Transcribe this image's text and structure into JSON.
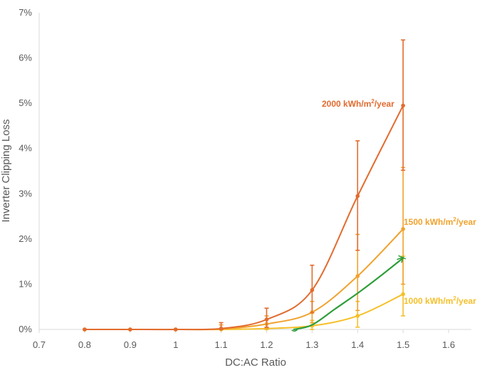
{
  "chart_data": {
    "type": "line",
    "title": "",
    "xlabel": "DC:AC Ratio",
    "ylabel": "Inverter Clipping Loss",
    "xlim": [
      0.7,
      1.65
    ],
    "ylim": [
      0,
      7
    ],
    "x_ticks": [
      "0.7",
      "0.8",
      "0.9",
      "1",
      "1.1",
      "1.2",
      "1.3",
      "1.4",
      "1.5",
      "1.6"
    ],
    "y_ticks": [
      "0%",
      "1%",
      "2%",
      "3%",
      "4%",
      "5%",
      "6%",
      "7%"
    ],
    "grid": false,
    "x": [
      0.8,
      0.9,
      1.0,
      1.1,
      1.2,
      1.3,
      1.4,
      1.5
    ],
    "series": [
      {
        "name": "2000 kWh/m²/year",
        "label_main": "2000 kWh/m",
        "label_sup": "2",
        "label_tail": "/year",
        "color": "#e26b2f",
        "values": [
          0,
          0,
          0,
          0.02,
          0.22,
          0.87,
          2.95,
          4.95
        ],
        "err_low": [
          0,
          0,
          0,
          0.0,
          0.05,
          0.37,
          1.75,
          3.52
        ],
        "err_high": [
          0,
          0,
          0,
          0.15,
          0.47,
          1.42,
          4.17,
          6.4
        ]
      },
      {
        "name": "1500 kWh/m²/year",
        "label_main": "1500 kWh/m",
        "label_sup": "2",
        "label_tail": "/year",
        "color": "#f0a22e",
        "values": [
          0,
          0,
          0,
          0.01,
          0.12,
          0.38,
          1.18,
          2.22
        ],
        "err_low": [
          0,
          0,
          0,
          0.0,
          0.02,
          0.15,
          0.42,
          1.0
        ],
        "err_high": [
          0,
          0,
          0,
          0.1,
          0.3,
          0.62,
          2.1,
          3.58
        ]
      },
      {
        "name": "1000 kWh/m²/year",
        "label_main": "1000 kWh/m",
        "label_sup": "2",
        "label_tail": "/year",
        "color": "#f5c02a",
        "values": [
          0,
          0,
          0,
          0,
          0.02,
          0.08,
          0.3,
          0.78
        ],
        "err_low": [
          0,
          0,
          0,
          0,
          0,
          0.0,
          0.05,
          0.3
        ],
        "err_high": [
          0,
          0,
          0,
          0,
          0.05,
          0.2,
          0.62,
          1.62
        ]
      }
    ],
    "annotation": {
      "type": "hand-drawn-line",
      "color": "#2e9e3a",
      "x": [
        1.26,
        1.3,
        1.35,
        1.4,
        1.45,
        1.5
      ],
      "values": [
        0.0,
        0.1,
        0.45,
        0.8,
        1.18,
        1.58
      ]
    }
  }
}
